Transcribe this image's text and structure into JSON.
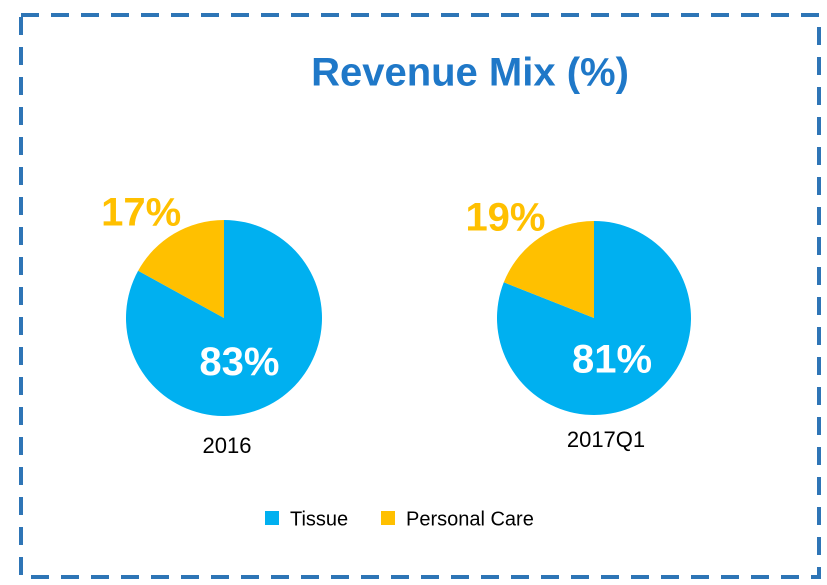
{
  "title": "Revenue Mix (%)",
  "categories": [
    "Tissue",
    "Personal Care"
  ],
  "colors": [
    "#00b0f0",
    "#ffc000"
  ],
  "chart_data": [
    {
      "type": "pie",
      "label": "2016",
      "values": [
        83,
        17
      ],
      "value_labels": [
        "83%",
        "17%"
      ]
    },
    {
      "type": "pie",
      "label": "2017Q1",
      "values": [
        81,
        19
      ],
      "value_labels": [
        "81%",
        "19%"
      ]
    }
  ]
}
